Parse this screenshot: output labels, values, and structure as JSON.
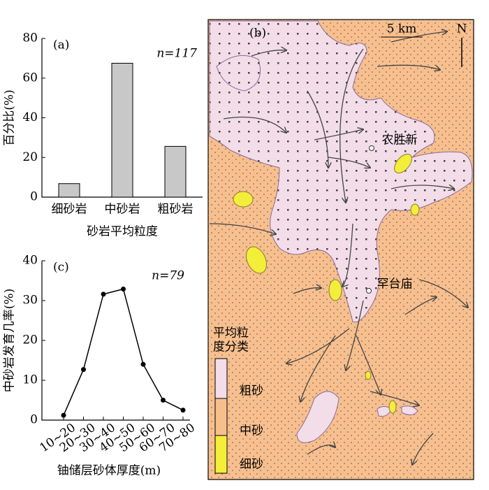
{
  "chart_data": [
    {
      "type": "bar",
      "annotation": "(a)",
      "n_label": "n=117",
      "y_label": "百分比(%)",
      "x_label": "砂岩平均粒度",
      "categories": [
        "细砂岩",
        "中砂岩",
        "粗砂岩"
      ],
      "values": [
        6.8,
        67.5,
        25.6
      ],
      "color": "#c8c8c8",
      "ylim": [
        0,
        80
      ],
      "yticks": [
        0,
        20,
        40,
        60,
        80
      ]
    },
    {
      "type": "line",
      "annotation": "(c)",
      "n_label": "n=79",
      "y_label": "中砂岩发育几率(%)",
      "x_label": "铀储层砂体厚度(m)",
      "categories": [
        "10~20",
        "20~30",
        "30~40",
        "40~50",
        "50~60",
        "60~70",
        "70~80"
      ],
      "values": [
        1.2,
        12.7,
        31.6,
        32.9,
        14.0,
        5.0,
        2.5
      ],
      "color": "#000000",
      "ylim": [
        0,
        40
      ],
      "yticks": [
        0,
        10,
        20,
        30,
        40
      ]
    }
  ],
  "map": {
    "label": "(b)",
    "scale": "5 km",
    "north": "N",
    "places": [
      "农胜新",
      "罕台庙"
    ],
    "legend_title": [
      "平均粒",
      "度分类"
    ],
    "legend": [
      "粗砂",
      "中砂",
      "细砂"
    ]
  }
}
